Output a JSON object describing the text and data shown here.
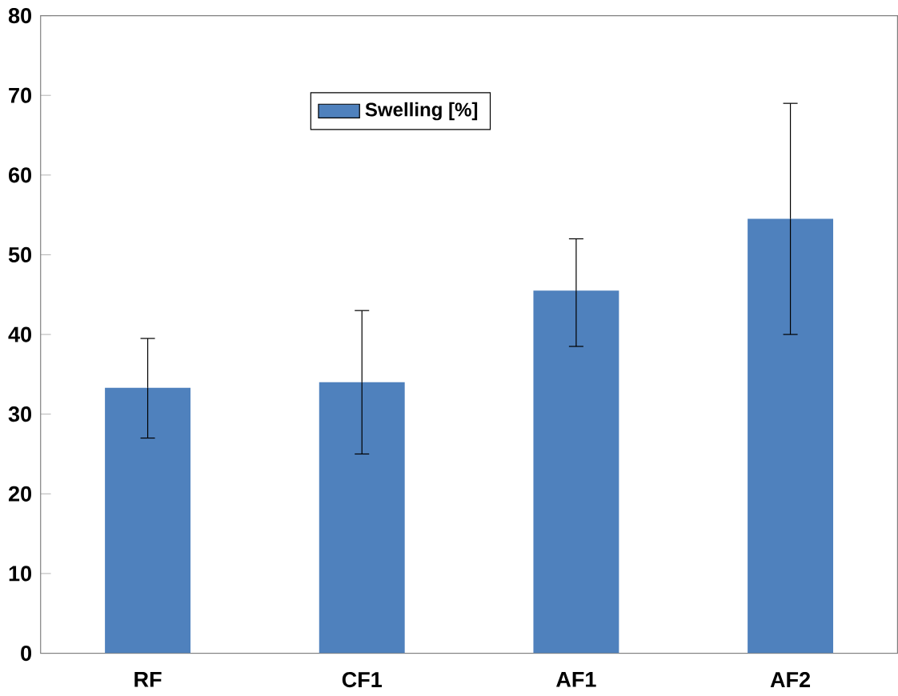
{
  "chart_data": {
    "type": "bar",
    "categories": [
      "RF",
      "CF1",
      "AF1",
      "AF2"
    ],
    "series": [
      {
        "name": "Swelling [%]",
        "color": "#4f81bd",
        "values": [
          33.3,
          34,
          45.5,
          54.5
        ],
        "errors": [
          [
            27,
            39.5
          ],
          [
            25,
            43
          ],
          [
            38.5,
            52
          ],
          [
            40,
            69
          ]
        ]
      }
    ],
    "ylim": [
      0,
      80
    ],
    "yticks": [
      0,
      10,
      20,
      30,
      40,
      50,
      60,
      70,
      80
    ],
    "grid": false,
    "legend": "top"
  }
}
